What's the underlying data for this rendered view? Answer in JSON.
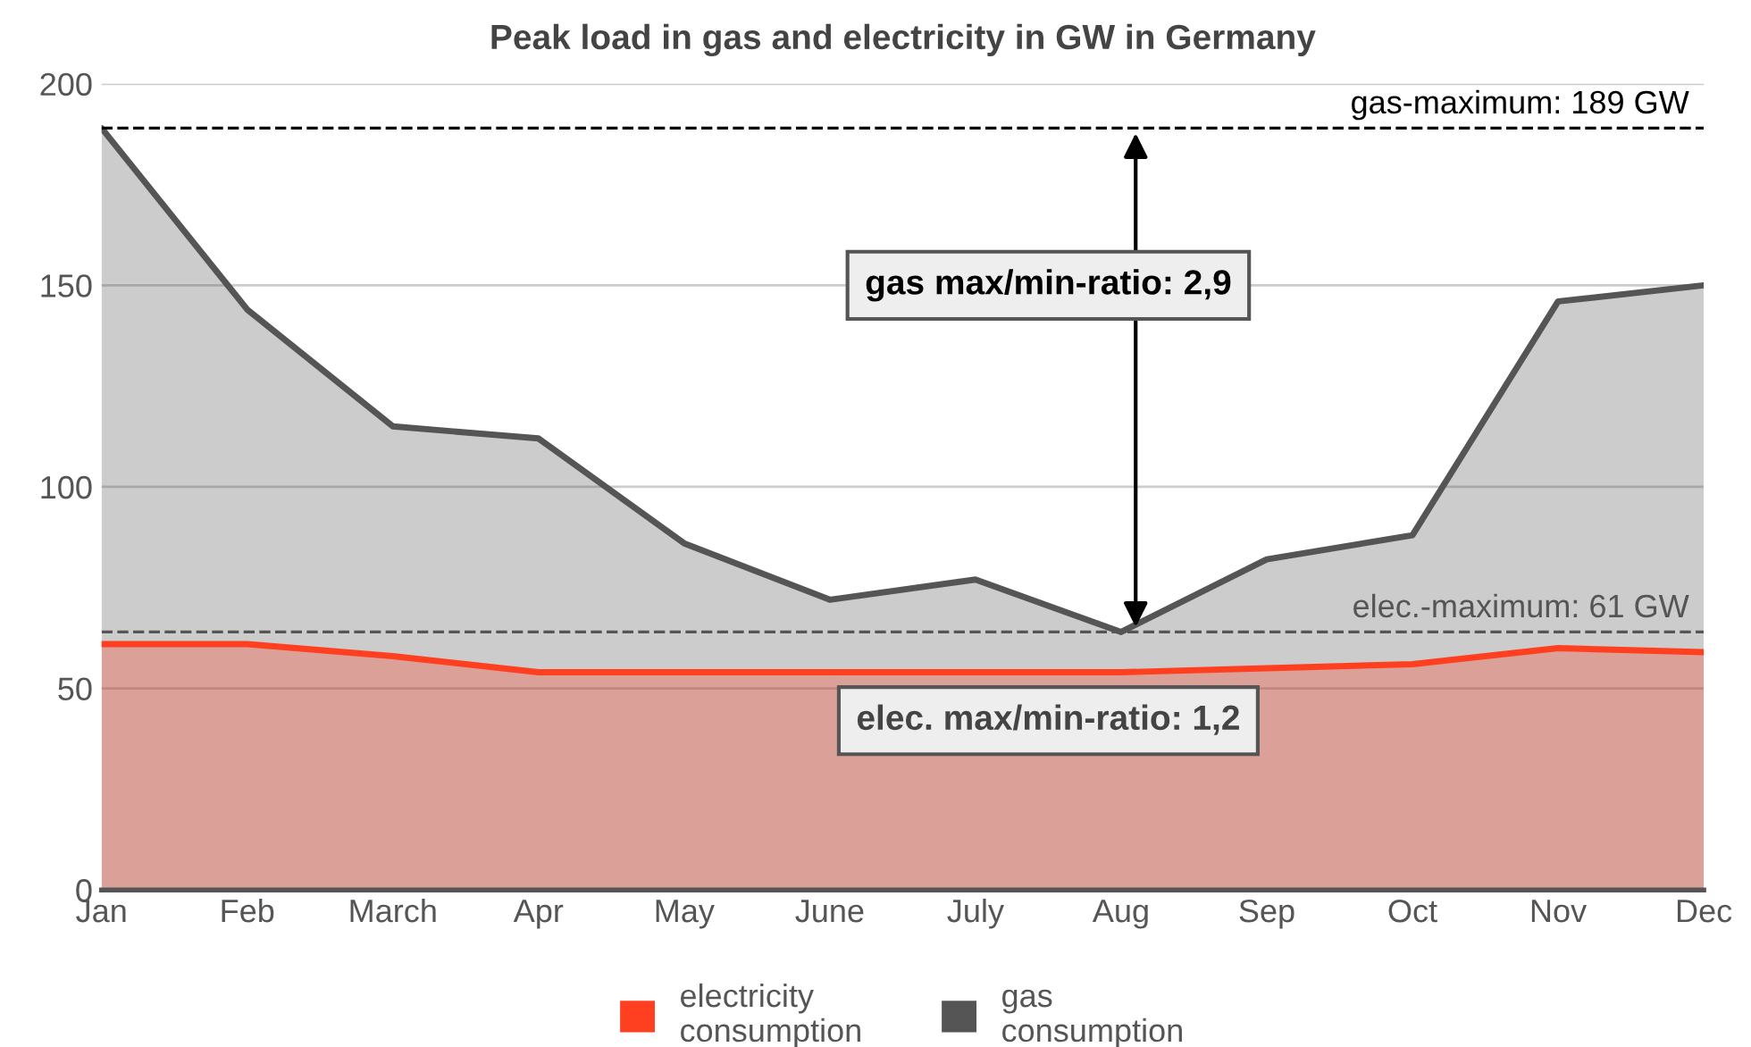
{
  "chart_data": {
    "type": "area",
    "title": "Peak load in gas and electricity in GW in Germany",
    "categories": [
      "Jan",
      "Feb",
      "March",
      "Apr",
      "May",
      "June",
      "July",
      "Aug",
      "Sep",
      "Oct",
      "Nov",
      "Dec"
    ],
    "series": [
      {
        "name": "gas consumption",
        "color": "#555555",
        "values": [
          189,
          144,
          115,
          112,
          86,
          72,
          77,
          64,
          82,
          88,
          146,
          150
        ]
      },
      {
        "name": "electricity consumption",
        "color": "#ff4020",
        "values": [
          61,
          61,
          58,
          54,
          54,
          54,
          54,
          54,
          55,
          56,
          60,
          59
        ]
      }
    ],
    "ylim": [
      0,
      200
    ],
    "yticks": [
      0,
      50,
      100,
      150,
      200
    ],
    "grid": "y",
    "legend": "bottom",
    "ref_lines": [
      {
        "axis": "y",
        "value": 189,
        "label": "gas-maximum: 189 GW",
        "color": "#000000",
        "line_style": "dashed"
      },
      {
        "axis": "y",
        "value": 64,
        "color": "#555555",
        "line_style": "dashed"
      }
    ],
    "annotations": [
      "gas max/min-ratio: 2,9",
      "elec. max/min-ratio: 1,2",
      "elec.-maximum: 61 GW"
    ]
  }
}
